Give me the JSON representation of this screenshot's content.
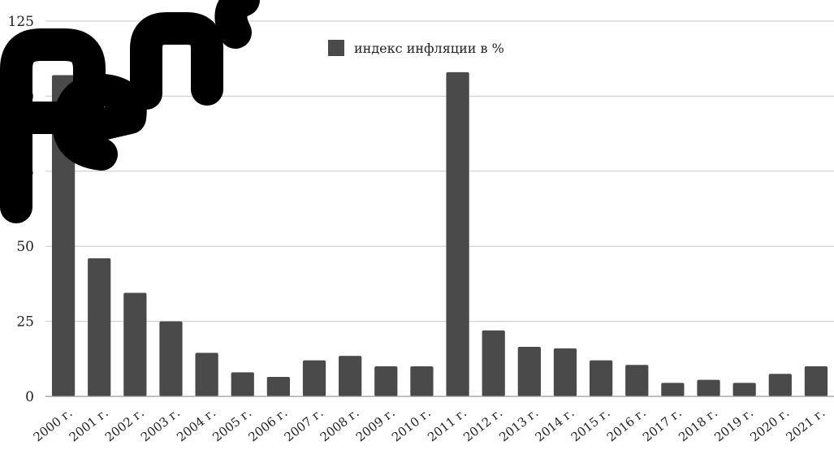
{
  "chart_data": {
    "type": "bar",
    "legend": {
      "label": "индекс инфляции в %",
      "position": "top"
    },
    "categories": [
      "2000 г.",
      "2001 г.",
      "2002 г.",
      "2003 г.",
      "2004 г.",
      "2005 г.",
      "2006 г.",
      "2007 г.",
      "2008 г.",
      "2009 г.",
      "2010 г.",
      "2011 г.",
      "2012 г.",
      "2013 г.",
      "2014 г.",
      "2015 г.",
      "2016 г.",
      "2017 г.",
      "2018 г.",
      "2019 г.",
      "2020 г.",
      "2021 г."
    ],
    "series": [
      {
        "name": "индекс инфляции в %",
        "values": [
          107,
          46,
          34.5,
          25,
          14.5,
          8,
          6.5,
          12,
          13.5,
          10,
          10,
          108,
          22,
          16.5,
          16,
          12,
          10.5,
          4.5,
          5.5,
          4.5,
          7.5,
          10
        ]
      }
    ],
    "ylim": [
      0,
      125
    ],
    "yticks": [
      0,
      25,
      50,
      75,
      100,
      125
    ],
    "grid": true,
    "bar_color": "#4a4a4a"
  },
  "watermark": "Репоз"
}
